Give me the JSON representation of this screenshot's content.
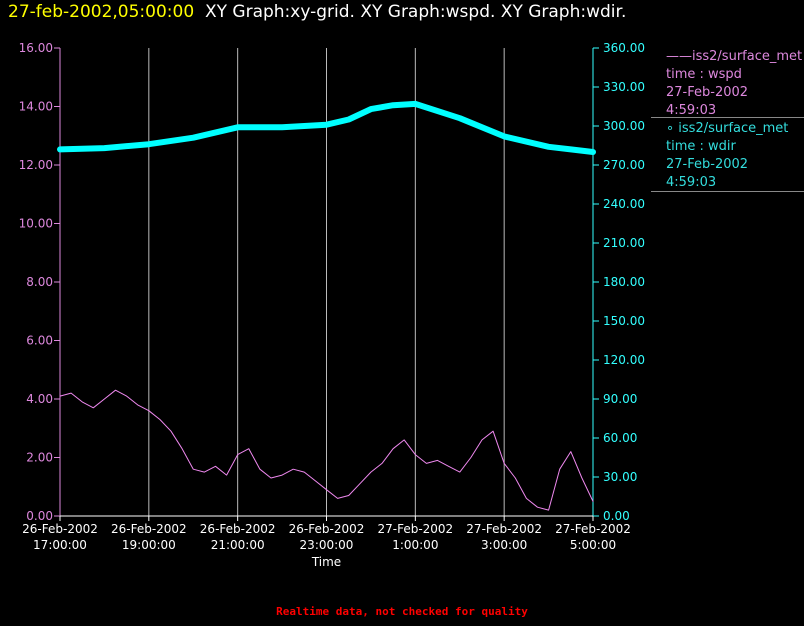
{
  "header": {
    "timestamp": "27-feb-2002,05:00:00",
    "graphs": "XY Graph:xy-grid.  XY Graph:wspd.  XY Graph:wdir."
  },
  "legend": {
    "wspd": {
      "marker": "——",
      "source": "iss2/surface_met",
      "vars": "time : wspd",
      "date": "27-Feb-2002",
      "time": "4:59:03"
    },
    "wdir": {
      "marker": "∘",
      "source": "iss2/surface_met",
      "vars": "time : wdir",
      "date": "27-Feb-2002",
      "time": "4:59:03"
    }
  },
  "footer": {
    "note": "Realtime data, not checked for quality"
  },
  "chart_data": {
    "type": "line",
    "xlabel": "Time",
    "x_ticks": [
      {
        "date": "26-Feb-2002",
        "time": "17:00:00"
      },
      {
        "date": "26-Feb-2002",
        "time": "19:00:00"
      },
      {
        "date": "26-Feb-2002",
        "time": "21:00:00"
      },
      {
        "date": "26-Feb-2002",
        "time": "23:00:00"
      },
      {
        "date": "27-Feb-2002",
        "time": "1:00:00"
      },
      {
        "date": "27-Feb-2002",
        "time": "3:00:00"
      },
      {
        "date": "27-Feb-2002",
        "time": "5:00:00"
      }
    ],
    "y_left": {
      "min": 0,
      "max": 16,
      "ticks": [
        "0.00",
        "2.00",
        "4.00",
        "6.00",
        "8.00",
        "10.00",
        "12.00",
        "14.00",
        "16.00"
      ],
      "color": "#dd88dd"
    },
    "y_right": {
      "min": 0,
      "max": 360,
      "ticks": [
        "0.00",
        "30.00",
        "60.00",
        "90.00",
        "120.00",
        "150.00",
        "180.00",
        "210.00",
        "240.00",
        "270.00",
        "300.00",
        "330.00",
        "360.00"
      ],
      "color": "#33ffff"
    },
    "grid": "vertical",
    "series": [
      {
        "name": "wspd",
        "axis": "left",
        "color": "#ee88ee",
        "x_hours": [
          0,
          0.25,
          0.5,
          0.75,
          1,
          1.25,
          1.5,
          1.75,
          2,
          2.25,
          2.5,
          2.75,
          3,
          3.25,
          3.5,
          3.75,
          4,
          4.25,
          4.5,
          4.75,
          5,
          5.25,
          5.5,
          5.75,
          6,
          6.25,
          6.5,
          6.75,
          7,
          7.25,
          7.5,
          7.75,
          8,
          8.25,
          8.5,
          8.75,
          9,
          9.25,
          9.5,
          9.75,
          10,
          10.25,
          10.5,
          10.75,
          11,
          11.25,
          11.5,
          11.75,
          12
        ],
        "values": [
          4.1,
          4.2,
          3.9,
          3.7,
          4.0,
          4.3,
          4.1,
          3.8,
          3.6,
          3.3,
          2.9,
          2.3,
          1.6,
          1.5,
          1.7,
          1.4,
          2.1,
          2.3,
          1.6,
          1.3,
          1.4,
          1.6,
          1.5,
          1.2,
          0.9,
          0.6,
          0.7,
          1.1,
          1.5,
          1.8,
          2.3,
          2.6,
          2.1,
          1.8,
          1.9,
          1.7,
          1.5,
          2.0,
          2.6,
          2.9,
          1.8,
          1.3,
          0.6,
          0.3,
          0.2,
          1.6,
          2.2,
          1.3,
          0.5
        ]
      },
      {
        "name": "wdir",
        "axis": "right",
        "color": "#00ffff",
        "x_hours": [
          0,
          1,
          2,
          3,
          4,
          5,
          6,
          6.5,
          7,
          7.5,
          8,
          9,
          10,
          11,
          11.5,
          12
        ],
        "values": [
          282,
          283,
          286,
          291,
          299,
          299,
          301,
          305,
          313,
          316,
          317,
          306,
          292,
          284,
          282,
          280
        ]
      }
    ]
  }
}
